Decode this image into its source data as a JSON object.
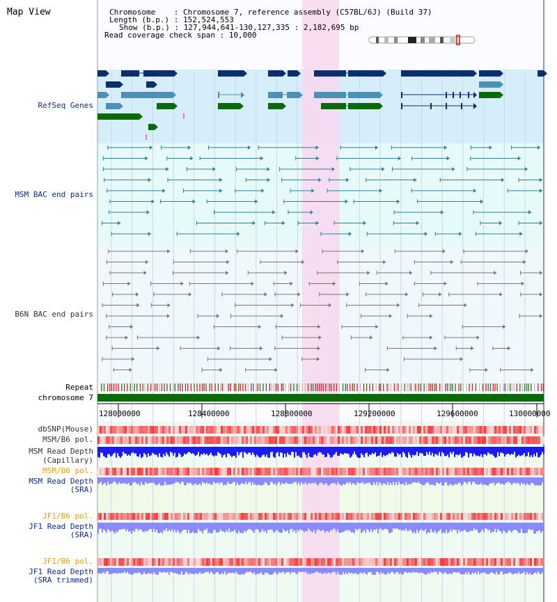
{
  "app": {
    "title": "Map View"
  },
  "header": {
    "chromosome_label": "Chromosome    : ",
    "chromosome_value": "Chromosome 7, reference assembly (C57BL/6J) (Build 37)",
    "length_label": "Length (b.p.) : ",
    "length_value": "152,524,553",
    "show_label": "Show (b.p.) : ",
    "show_value": "127,944,641-130,127,335 : 2,182,695 bp",
    "span_label": "Read coverage check span : ",
    "span_value": "10,000"
  },
  "tracks": {
    "refseq": "RefSeq Genes",
    "msm_bac": "MSM BAC end pairs",
    "b6n_bac": "B6N BAC end pairs",
    "repeat": "Repeat",
    "chromosome": "chromosome 7",
    "dbsnp": "dbSNP(Mouse)",
    "msm_b6_pol": "MSM/B6 pol.",
    "msm_read_depth_cap_1": "MSM Read Depth",
    "msm_read_depth_cap_2": "(Capillary)",
    "msm_b6_pol_2": "MSM/B6 pol.",
    "msm_read_depth_sra_1": "MSM Read Depth",
    "msm_read_depth_sra_2": "(SRA)",
    "jf1_b6_pol": "JF1/B6 pol.",
    "jf1_read_depth_sra_1": "JF1 Read Depth",
    "jf1_read_depth_sra_2": "(SRA)",
    "jf1_b6_pol_2": "JF1/B6 pol.",
    "jf1_read_depth_trim_1": "JF1 Read Depth",
    "jf1_read_depth_trim_2": "(SRA trimmed)"
  },
  "axis": {
    "ticks": [
      "128000000",
      "128400000",
      "128800000",
      "129200000",
      "129600000",
      "130000000"
    ]
  },
  "colors": {
    "refseq_bg": "#d6eefa",
    "bac_bg": "#e6fafa",
    "b6n_bg": "#f0f8fc",
    "highlight": "#f8d8f0",
    "gene_dark": "#0a2f6e",
    "gene_mid": "#4a90b8",
    "gene_green": "#0a6a0a",
    "chromosome_bar": "#0a6a0a",
    "read_depth_blue": "#1a1aff",
    "read_depth_light": "#8a8aff",
    "pol_red": "#f03030"
  }
}
